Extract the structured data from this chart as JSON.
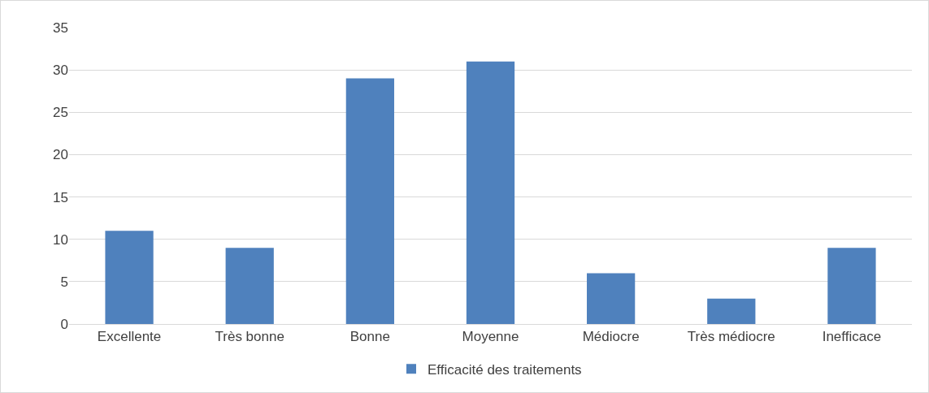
{
  "chart_data": {
    "type": "bar",
    "categories": [
      "Excellente",
      "Très bonne",
      "Bonne",
      "Moyenne",
      "Médiocre",
      "Très médiocre",
      "Inefficace"
    ],
    "series": [
      {
        "name": "Efficacité des traitements",
        "color": "#4f81bd",
        "values": [
          11,
          9,
          29,
          31,
          6,
          3,
          9
        ]
      }
    ],
    "ylim": [
      0,
      35
    ],
    "yticks": [
      0,
      5,
      10,
      15,
      20,
      25,
      30,
      35
    ],
    "grid": "y",
    "legend": "bottom"
  }
}
